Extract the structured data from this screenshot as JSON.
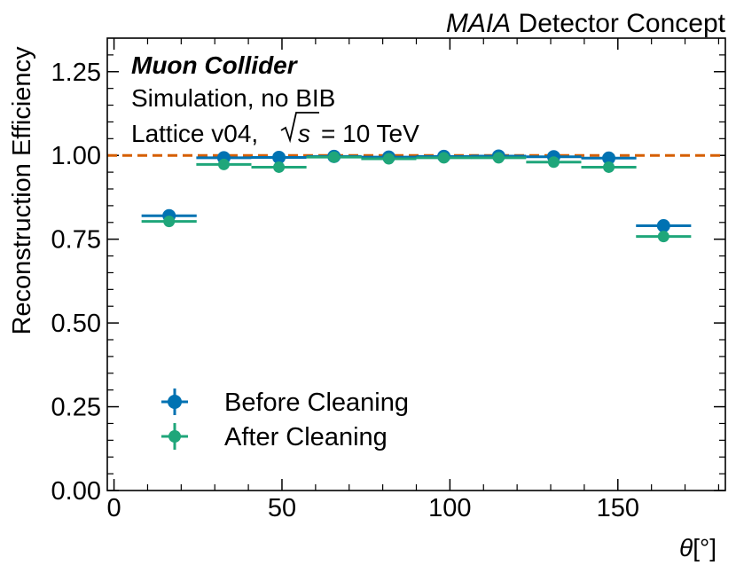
{
  "chart_data": {
    "type": "scatter",
    "title_italic": "MAIA",
    "title_rest": " Detector Concept",
    "xlabel_symbol": "θ",
    "xlabel_unit": "[°]",
    "ylabel": "Reconstruction Efficiency",
    "xlim": [
      -2,
      182
    ],
    "ylim": [
      0.0,
      1.35
    ],
    "xticks": [
      0,
      50,
      100,
      150
    ],
    "xtick_labels": [
      "0",
      "50",
      "100",
      "150"
    ],
    "yticks": [
      0.0,
      0.25,
      0.5,
      0.75,
      1.0,
      1.25
    ],
    "ytick_labels": [
      "0.00",
      "0.25",
      "0.50",
      "0.75",
      "1.00",
      "1.25"
    ],
    "reference_line": {
      "y": 1.0,
      "color": "#D55E00",
      "style": "dashed"
    },
    "annotations": {
      "line1": "Muon Collider",
      "line2": "Simulation, no BIB",
      "line3_prefix": "Lattice v04, ",
      "line3_sqrt_symbol": "s",
      "line3_suffix": " = 10 TeV"
    },
    "legend_position": "lower-left",
    "series": [
      {
        "name": "Before Cleaning",
        "color": "#0072B2",
        "x": [
          16.4,
          32.7,
          49.1,
          65.5,
          81.8,
          98.2,
          114.5,
          130.9,
          147.3,
          163.6
        ],
        "xerr": [
          8.2,
          8.2,
          8.2,
          8.2,
          8.2,
          8.2,
          8.2,
          8.2,
          8.2,
          8.2
        ],
        "y": [
          0.82,
          0.993,
          0.994,
          0.997,
          0.995,
          0.997,
          0.998,
          0.996,
          0.992,
          0.79
        ]
      },
      {
        "name": "After Cleaning",
        "color": "#1FA67A",
        "x": [
          16.4,
          32.7,
          49.1,
          65.5,
          81.8,
          98.2,
          114.5,
          130.9,
          147.3,
          163.6
        ],
        "xerr": [
          8.2,
          8.2,
          8.2,
          8.2,
          8.2,
          8.2,
          8.2,
          8.2,
          8.2,
          8.2
        ],
        "y": [
          0.803,
          0.973,
          0.965,
          0.995,
          0.99,
          0.993,
          0.993,
          0.98,
          0.965,
          0.758
        ]
      }
    ]
  }
}
